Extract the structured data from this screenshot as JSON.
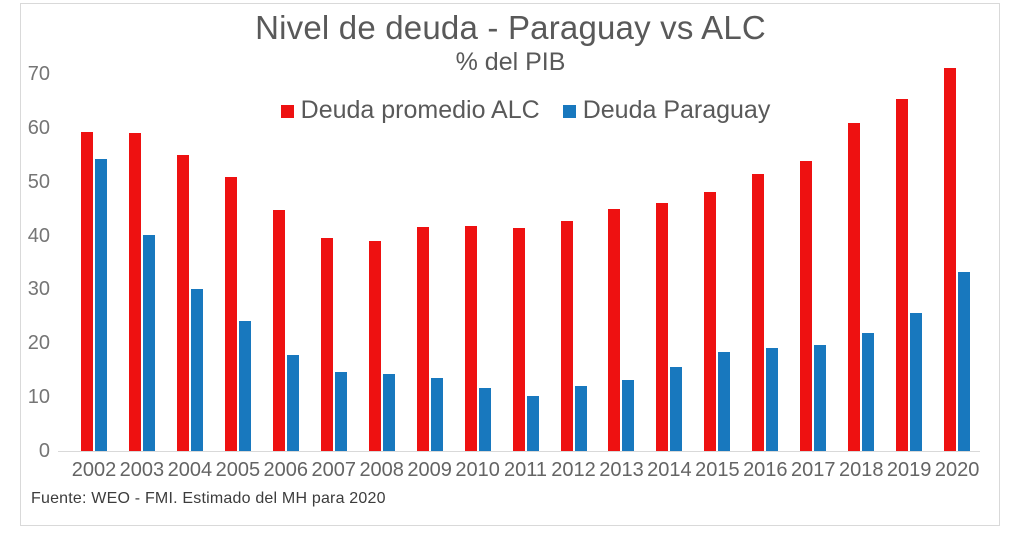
{
  "chart_data": {
    "type": "bar",
    "title": "Nivel de deuda - Paraguay vs ALC",
    "subtitle": "% del PIB",
    "categories": [
      "2002",
      "2003",
      "2004",
      "2005",
      "2006",
      "2007",
      "2008",
      "2009",
      "2010",
      "2011",
      "2012",
      "2013",
      "2014",
      "2015",
      "2016",
      "2017",
      "2018",
      "2019",
      "2020"
    ],
    "series": [
      {
        "key": "alc",
        "name": "Deuda promedio ALC",
        "color": "#ee1111",
        "values": [
          59.3,
          59.1,
          54.9,
          50.8,
          44.7,
          39.6,
          39.0,
          41.6,
          41.7,
          41.5,
          42.7,
          45.0,
          46.0,
          48.1,
          51.4,
          53.9,
          61.0,
          65.3,
          71.2
        ]
      },
      {
        "key": "paraguay",
        "name": "Deuda Paraguay",
        "color": "#1878be",
        "values": [
          54.3,
          40.1,
          30.1,
          24.1,
          17.9,
          14.7,
          14.3,
          13.6,
          11.7,
          10.2,
          12.1,
          13.2,
          15.6,
          18.4,
          19.2,
          19.7,
          21.9,
          25.7,
          33.2
        ]
      }
    ],
    "xlabel": "",
    "ylabel": "",
    "ylim": [
      0,
      70
    ],
    "yticks": [
      0,
      10,
      20,
      30,
      40,
      50,
      60,
      70
    ],
    "grid": false,
    "legend_position": "top-center",
    "axis_text_color": "#757575",
    "title_text_color": "#595959",
    "border_color": "#d9d9d9",
    "source_note": "Fuente: WEO - FMI. Estimado del MH para 2020"
  }
}
